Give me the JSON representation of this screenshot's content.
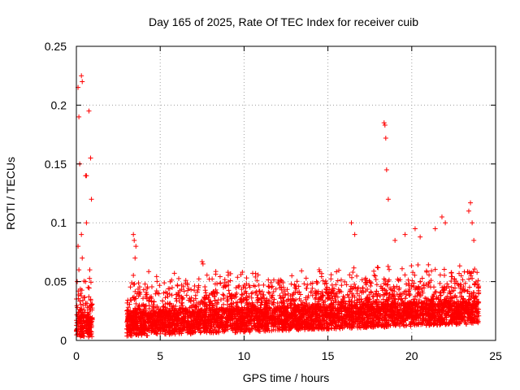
{
  "chart_data": {
    "type": "scatter",
    "title": "Day 165 of 2025, Rate Of TEC Index for receiver cuib",
    "xlabel": "GPS time / hours",
    "ylabel": "ROTI / TECUs",
    "xlim": [
      0,
      25
    ],
    "ylim": [
      0,
      0.25
    ],
    "grid": true,
    "marker": "+",
    "color": "#ff0000",
    "x_ticks": [
      {
        "value": 0,
        "label": "0"
      },
      {
        "value": 5,
        "label": "5"
      },
      {
        "value": 10,
        "label": "10"
      },
      {
        "value": 15,
        "label": "15"
      },
      {
        "value": 20,
        "label": "20"
      },
      {
        "value": 25,
        "label": "25"
      }
    ],
    "y_ticks": [
      {
        "value": 0,
        "label": "0"
      },
      {
        "value": 0.05,
        "label": "0.05"
      },
      {
        "value": 0.1,
        "label": "0.1"
      },
      {
        "value": 0.15,
        "label": "0.15"
      },
      {
        "value": 0.2,
        "label": "0.2"
      },
      {
        "value": 0.25,
        "label": "0.25"
      }
    ],
    "coverage_hours": [
      [
        0,
        0.95
      ],
      [
        3.0,
        24.0
      ]
    ],
    "series": [
      {
        "name": "ROTI",
        "x": [
          0.05,
          0.1,
          0.15,
          0.2,
          0.25,
          0.3,
          0.35,
          0.4,
          0.45,
          0.5,
          0.55,
          0.6,
          0.65,
          0.7,
          0.75,
          0.8,
          0.85,
          0.9,
          0.05,
          0.1,
          0.15,
          0.25,
          0.3,
          0.35,
          0.55,
          0.6,
          0.7,
          0.8,
          0.85,
          3.1,
          3.2,
          3.3,
          3.4,
          3.5,
          3.6,
          3.8,
          4.0,
          4.3,
          4.7,
          5.0,
          5.3,
          5.6,
          6.0,
          6.3,
          6.7,
          7.0,
          7.4,
          7.7,
          8.0,
          8.3,
          8.6,
          9.0,
          9.3,
          9.6,
          9.9,
          10.2,
          10.6,
          11.0,
          11.3,
          11.7,
          12.0,
          12.3,
          12.6,
          13.0,
          13.3,
          13.5,
          13.8,
          14.1,
          14.5,
          14.8,
          15.1,
          15.4,
          15.7,
          16.0,
          16.3,
          16.6,
          16.9,
          17.2,
          17.5,
          17.8,
          18.1,
          18.3,
          18.45,
          18.6,
          18.9,
          19.2,
          19.5,
          19.8,
          20.1,
          20.4,
          20.7,
          21.0,
          21.3,
          21.6,
          21.9,
          22.2,
          22.5,
          22.8,
          23.1,
          23.4,
          23.6,
          23.8,
          23.95,
          0.1,
          0.15,
          0.2,
          0.3,
          0.35,
          0.55,
          0.6,
          0.75,
          0.85,
          0.9,
          3.4,
          3.45,
          3.5,
          3.55,
          7.5,
          7.55,
          9.9,
          16.4,
          16.6,
          18.35,
          18.4,
          18.45,
          18.5,
          18.6,
          19.0,
          19.6,
          20.2,
          20.5,
          21.4,
          21.8,
          22.0,
          23.4,
          23.5,
          23.6,
          23.7
        ],
        "y": [
          0.01,
          0.015,
          0.02,
          0.012,
          0.025,
          0.018,
          0.013,
          0.03,
          0.01,
          0.015,
          0.02,
          0.012,
          0.017,
          0.022,
          0.01,
          0.014,
          0.019,
          0.016,
          0.05,
          0.08,
          0.06,
          0.04,
          0.09,
          0.07,
          0.05,
          0.1,
          0.045,
          0.06,
          0.035,
          0.012,
          0.02,
          0.018,
          0.015,
          0.025,
          0.01,
          0.02,
          0.015,
          0.018,
          0.012,
          0.02,
          0.016,
          0.014,
          0.013,
          0.018,
          0.015,
          0.012,
          0.02,
          0.014,
          0.013,
          0.016,
          0.012,
          0.015,
          0.018,
          0.014,
          0.016,
          0.02,
          0.018,
          0.022,
          0.02,
          0.025,
          0.022,
          0.024,
          0.028,
          0.03,
          0.025,
          0.028,
          0.024,
          0.026,
          0.02,
          0.025,
          0.018,
          0.022,
          0.028,
          0.025,
          0.03,
          0.032,
          0.028,
          0.03,
          0.035,
          0.032,
          0.038,
          0.035,
          0.04,
          0.035,
          0.03,
          0.035,
          0.032,
          0.028,
          0.035,
          0.04,
          0.032,
          0.028,
          0.03,
          0.035,
          0.028,
          0.03,
          0.025,
          0.028,
          0.02,
          0.022,
          0.018,
          0.02,
          0.015,
          0.215,
          0.19,
          0.15,
          0.225,
          0.22,
          0.14,
          0.14,
          0.195,
          0.155,
          0.12,
          0.09,
          0.085,
          0.07,
          0.08,
          0.067,
          0.065,
          0.058,
          0.1,
          0.09,
          0.185,
          0.183,
          0.172,
          0.145,
          0.12,
          0.085,
          0.09,
          0.095,
          0.088,
          0.095,
          0.105,
          0.1,
          0.11,
          0.117,
          0.1,
          0.085
        ]
      }
    ]
  }
}
